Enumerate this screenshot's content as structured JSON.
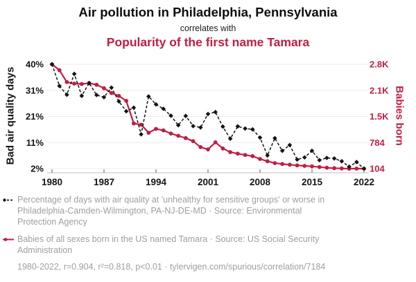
{
  "header": {
    "title": "Air pollution in Philadelphia, Pennsylvania",
    "connector": "correlates with",
    "subtitle": "Popularity of the first name Tamara"
  },
  "colors": {
    "accent_red": "#c01e42",
    "series_black": "#141414",
    "grid": "#ececec",
    "axis_line": "#cccccc",
    "tick_mark": "#999999",
    "legend_text": "#9e9e9e"
  },
  "chart_data": {
    "type": "line",
    "x_years": [
      1980,
      1981,
      1982,
      1983,
      1984,
      1985,
      1986,
      1987,
      1988,
      1989,
      1990,
      1991,
      1992,
      1993,
      1994,
      1995,
      1996,
      1997,
      1998,
      1999,
      2000,
      2001,
      2002,
      2003,
      2004,
      2005,
      2006,
      2007,
      2008,
      2009,
      2010,
      2011,
      2012,
      2013,
      2014,
      2015,
      2016,
      2017,
      2018,
      2019,
      2020,
      2021,
      2022
    ],
    "x_axis": {
      "tick_labels": [
        "1980",
        "1987",
        "1994",
        "2001",
        "2008",
        "2015",
        "2022"
      ],
      "tick_years": [
        1980,
        1987,
        1994,
        2001,
        2008,
        2015,
        2022
      ],
      "range": [
        1980,
        2022
      ]
    },
    "left_axis": {
      "label": "Bad air quality days",
      "tick_labels": [
        "40%",
        "31%",
        "21%",
        "11%",
        "2%"
      ],
      "range": [
        2,
        40
      ],
      "unit": "%"
    },
    "right_axis": {
      "label": "Babies born",
      "tick_labels": [
        "2.8K",
        "2.1K",
        "1.5K",
        "784",
        "104"
      ],
      "range": [
        104,
        2824
      ],
      "unit": "babies"
    },
    "grid": "horizontal-only",
    "legend_position": "below",
    "series": [
      {
        "name": "Percentage of days with bad air quality in Philadelphia-Camden-Wilmington",
        "axis": "left",
        "style": "dashed",
        "marker": "diamond",
        "color": "#141414",
        "values": [
          40.0,
          32.1,
          28.9,
          36.5,
          28.5,
          33.2,
          28.8,
          28.0,
          31.5,
          26.5,
          22.9,
          24.2,
          14.5,
          28.3,
          25.4,
          23.8,
          21.3,
          17.8,
          21.2,
          17.5,
          17.0,
          21.9,
          22.6,
          17.3,
          12.9,
          17.4,
          16.6,
          16.3,
          13.3,
          6.8,
          13.1,
          8.5,
          10.6,
          5.3,
          6.1,
          8.5,
          5.1,
          5.9,
          5.7,
          4.7,
          2.7,
          4.4,
          2.0
        ]
      },
      {
        "name": "Babies born in the US named Tamara",
        "axis": "right",
        "style": "solid",
        "marker": "circle",
        "color": "#c01e42",
        "values": [
          2824,
          2670,
          2360,
          2320,
          2310,
          2330,
          2290,
          2200,
          2075,
          2000,
          1870,
          1283,
          1250,
          1040,
          1140,
          1100,
          1020,
          960,
          900,
          820,
          665,
          605,
          790,
          630,
          535,
          495,
          460,
          430,
          356,
          297,
          248,
          225,
          207,
          189,
          176,
          164,
          146,
          128,
          117,
          110,
          102,
          106,
          104
        ]
      }
    ]
  },
  "legend": [
    {
      "marker": "black-dashed-dot",
      "text": "Percentage of days with air quality at 'unhealthy for sensitive groups' or worse in Philadelphia-Camden-Wilmington, PA-NJ-DE-MD · Source: Environmental Protection Agency"
    },
    {
      "marker": "red-solid-dot",
      "text": "Babies of all sexes born in the US named Tamara · Source: US Social Security Administration"
    }
  ],
  "footer": {
    "text": "1980-2022, r=0.904, r²=0.818, p<0.01 · tylervigen.com/spurious/correlation/7184"
  }
}
